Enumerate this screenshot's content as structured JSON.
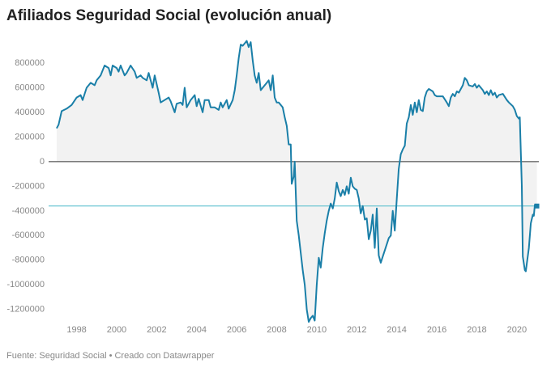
{
  "chart_data": {
    "type": "area-line",
    "title": "Afiliados Seguridad Social (evolución anual)",
    "source": "Fuente: Seguridad Social • Creado con Datawrapper",
    "x": [
      1997.0,
      1997.1,
      1997.25,
      1997.5,
      1997.75,
      1998.0,
      1998.2,
      1998.3,
      1998.5,
      1998.7,
      1998.9,
      1999.0,
      1999.2,
      1999.4,
      1999.6,
      1999.7,
      1999.8,
      2000.0,
      2000.1,
      2000.2,
      2000.4,
      2000.5,
      2000.7,
      2000.9,
      2001.0,
      2001.2,
      2001.3,
      2001.5,
      2001.6,
      2001.8,
      2001.9,
      2002.1,
      2002.2,
      2002.4,
      2002.6,
      2002.7,
      2002.9,
      2003.0,
      2003.2,
      2003.3,
      2003.4,
      2003.5,
      2003.7,
      2003.9,
      2004.0,
      2004.1,
      2004.3,
      2004.4,
      2004.6,
      2004.7,
      2004.9,
      2005.1,
      2005.2,
      2005.3,
      2005.5,
      2005.6,
      2005.8,
      2005.9,
      2006.0,
      2006.1,
      2006.2,
      2006.3,
      2006.4,
      2006.5,
      2006.6,
      2006.7,
      2006.8,
      2006.9,
      2007.0,
      2007.1,
      2007.2,
      2007.3,
      2007.5,
      2007.6,
      2007.7,
      2007.8,
      2007.9,
      2008.0,
      2008.1,
      2008.3,
      2008.4,
      2008.5,
      2008.6,
      2008.7,
      2008.75,
      2008.85,
      2008.9,
      2009.0,
      2009.1,
      2009.3,
      2009.4,
      2009.5,
      2009.6,
      2009.7,
      2009.8,
      2009.9,
      2010.0,
      2010.1,
      2010.2,
      2010.3,
      2010.4,
      2010.5,
      2010.6,
      2010.7,
      2010.8,
      2010.9,
      2011.0,
      2011.1,
      2011.2,
      2011.3,
      2011.4,
      2011.5,
      2011.6,
      2011.7,
      2011.8,
      2011.9,
      2012.0,
      2012.1,
      2012.2,
      2012.3,
      2012.4,
      2012.5,
      2012.6,
      2012.7,
      2012.8,
      2012.9,
      2013.0,
      2013.1,
      2013.2,
      2013.3,
      2013.4,
      2013.6,
      2013.7,
      2013.8,
      2013.9,
      2014.0,
      2014.1,
      2014.2,
      2014.3,
      2014.4,
      2014.5,
      2014.6,
      2014.7,
      2014.8,
      2014.9,
      2015.0,
      2015.1,
      2015.2,
      2015.3,
      2015.4,
      2015.5,
      2015.6,
      2015.8,
      2015.9,
      2016.0,
      2016.3,
      2016.5,
      2016.6,
      2016.7,
      2016.8,
      2016.9,
      2017.0,
      2017.1,
      2017.3,
      2017.4,
      2017.5,
      2017.6,
      2017.8,
      2017.9,
      2018.0,
      2018.1,
      2018.3,
      2018.4,
      2018.5,
      2018.6,
      2018.7,
      2018.8,
      2018.9,
      2019.0,
      2019.1,
      2019.3,
      2019.5,
      2019.6,
      2019.8,
      2019.9,
      2020.0,
      2020.1,
      2020.15,
      2020.25,
      2020.3,
      2020.4,
      2020.45,
      2020.6,
      2020.7,
      2020.8,
      2020.85,
      2020.9,
      2021.0
    ],
    "values": [
      270000,
      300000,
      410000,
      430000,
      460000,
      520000,
      540000,
      500000,
      600000,
      640000,
      620000,
      660000,
      700000,
      780000,
      760000,
      700000,
      780000,
      760000,
      730000,
      780000,
      700000,
      720000,
      780000,
      730000,
      680000,
      700000,
      680000,
      660000,
      720000,
      600000,
      700000,
      560000,
      480000,
      500000,
      520000,
      490000,
      400000,
      470000,
      480000,
      460000,
      600000,
      440000,
      500000,
      540000,
      450000,
      510000,
      400000,
      500000,
      500000,
      440000,
      440000,
      420000,
      480000,
      440000,
      500000,
      430000,
      500000,
      580000,
      700000,
      840000,
      950000,
      940000,
      960000,
      980000,
      930000,
      970000,
      820000,
      700000,
      640000,
      720000,
      580000,
      600000,
      640000,
      660000,
      580000,
      700000,
      520000,
      480000,
      480000,
      440000,
      360000,
      290000,
      140000,
      140000,
      -180000,
      -120000,
      0,
      -480000,
      -600000,
      -880000,
      -1000000,
      -1200000,
      -1300000,
      -1270000,
      -1250000,
      -1290000,
      -1000000,
      -780000,
      -860000,
      -700000,
      -580000,
      -480000,
      -400000,
      -340000,
      -380000,
      -300000,
      -170000,
      -240000,
      -280000,
      -230000,
      -270000,
      -200000,
      -260000,
      -130000,
      -200000,
      -220000,
      -230000,
      -300000,
      -420000,
      -360000,
      -470000,
      -460000,
      -630000,
      -560000,
      -430000,
      -700000,
      -380000,
      -760000,
      -820000,
      -770000,
      -720000,
      -620000,
      -600000,
      -400000,
      -560000,
      -300000,
      -60000,
      60000,
      100000,
      130000,
      310000,
      360000,
      460000,
      380000,
      480000,
      400000,
      500000,
      420000,
      410000,
      520000,
      570000,
      590000,
      570000,
      540000,
      530000,
      530000,
      480000,
      450000,
      520000,
      550000,
      530000,
      570000,
      560000,
      620000,
      680000,
      660000,
      620000,
      610000,
      630000,
      600000,
      620000,
      580000,
      550000,
      570000,
      540000,
      580000,
      540000,
      560000,
      520000,
      540000,
      550000,
      500000,
      480000,
      450000,
      420000,
      370000,
      350000,
      360000,
      -200000,
      -770000,
      -880000,
      -890000,
      -700000,
      -500000,
      -430000,
      -440000,
      -350000,
      -360000
    ],
    "color": "#1a7fa8",
    "xlim": [
      1996.6,
      2021.1
    ],
    "xticks": [
      1998,
      2000,
      2002,
      2004,
      2006,
      2008,
      2010,
      2012,
      2014,
      2016,
      2018,
      2020
    ],
    "ylim": [
      -1300000,
      1000000
    ],
    "yticks": [
      800000,
      600000,
      400000,
      200000,
      0,
      -200000,
      -400000,
      -600000,
      -800000,
      -1000000,
      -1200000
    ],
    "grid": false
  }
}
